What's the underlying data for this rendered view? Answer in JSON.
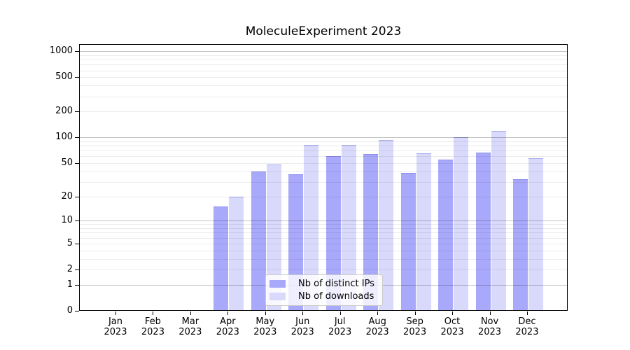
{
  "chart_data": {
    "type": "bar",
    "title": "MoleculeExperiment 2023",
    "categories": [
      "Jan",
      "Feb",
      "Mar",
      "Apr",
      "May",
      "Jun",
      "Jul",
      "Aug",
      "Sep",
      "Oct",
      "Nov",
      "Dec"
    ],
    "year_label": "2023",
    "series": [
      {
        "key": "distinct-ips",
        "name": "Nb of distinct IPs",
        "color": "#a9a9fb",
        "values": [
          0,
          0,
          0,
          15,
          40,
          37,
          60,
          64,
          38,
          55,
          66,
          32
        ]
      },
      {
        "key": "downloads",
        "name": "Nb of downloads",
        "color": "#d9d9fb",
        "values": [
          0,
          0,
          0,
          20,
          48,
          82,
          82,
          94,
          65,
          101,
          120,
          57
        ]
      }
    ],
    "xlabel": "",
    "ylabel": "",
    "y_scale": "log1p",
    "y_ticks": [
      0,
      1,
      2,
      5,
      10,
      20,
      50,
      100,
      200,
      500,
      1000
    ],
    "ylim": [
      0,
      1200
    ],
    "grid": true,
    "major_grid_color": "#c3c3c3",
    "minor_grid_color": "#ebebeb",
    "axis_color": "#000000",
    "legend_position": "lower center"
  }
}
